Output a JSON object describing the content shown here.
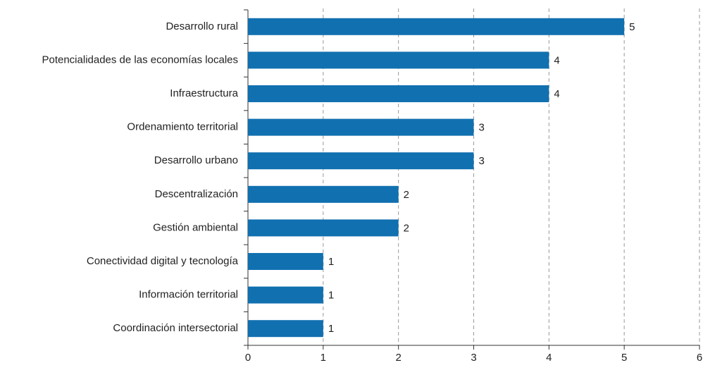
{
  "chart_data": {
    "type": "barh",
    "categories": [
      "Desarrollo rural",
      "Potencialidades de las economías locales",
      "Infraestructura",
      "Ordenamiento territorial",
      "Desarrollo urbano",
      "Descentralización",
      "Gestión ambiental",
      "Conectividad digital y tecnología",
      "Información territorial",
      "Coordinación intersectorial"
    ],
    "values": [
      5,
      4,
      4,
      3,
      3,
      2,
      2,
      1,
      1,
      1
    ],
    "color": "#1170b0",
    "xlim": [
      0,
      6
    ],
    "xticks": [
      0,
      1,
      2,
      3,
      4,
      5,
      6
    ],
    "grid": true
  }
}
